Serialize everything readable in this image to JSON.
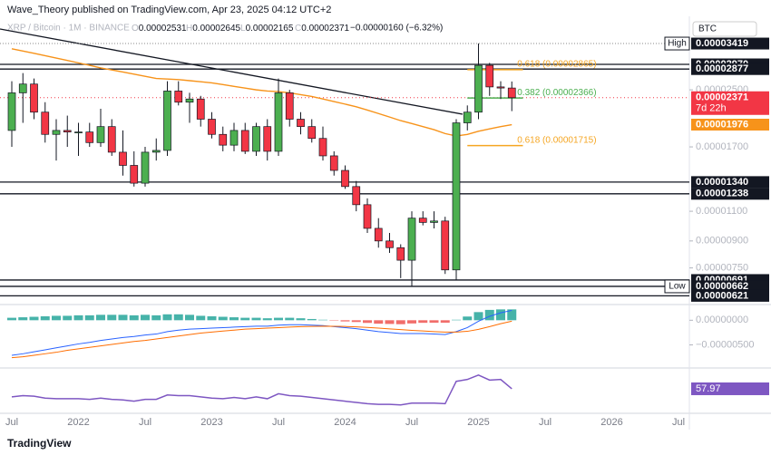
{
  "header": {
    "author_line": "Wave_Theory published on TradingView.com, Apr 23, 2025 04:12 UTC+2",
    "symbol": "XRP / Bitcoin · 1M · BINANCE",
    "ohlc": [
      {
        "key": "O",
        "value": "0.00002531"
      },
      {
        "key": "H",
        "value": "0.00002645"
      },
      {
        "key": "L",
        "value": "0.00002165"
      },
      {
        "key": "C",
        "value": "0.00002371"
      }
    ],
    "change": "−0.00000160 (−6.32%)"
  },
  "currency": "BTC",
  "footer": "TradingView",
  "chart_data": [
    {
      "type": "candlestick",
      "log_scale": true,
      "grid": false,
      "categories": [
        "Jul",
        null,
        null,
        null,
        null,
        null,
        "2022",
        null,
        null,
        null,
        null,
        null,
        "Jul",
        null,
        null,
        null,
        null,
        null,
        "2023",
        null,
        null,
        null,
        null,
        null,
        "Jul",
        null,
        null,
        null,
        null,
        null,
        "2024",
        null,
        null,
        null,
        null,
        null,
        "Jul",
        null,
        null,
        null,
        null,
        null,
        "2025",
        null,
        null,
        null,
        null,
        null,
        "Jul",
        null,
        null,
        null,
        null,
        null,
        "2026",
        null,
        null,
        null,
        null,
        null,
        "Jul"
      ],
      "up_color": "#4caf50",
      "down_color": "#f23645",
      "open": [
        1.9e-05,
        2.45e-05,
        2.6e-05,
        2.15e-05,
        1.85e-05,
        1.9e-05,
        1.88e-05,
        1.88e-05,
        1.75e-05,
        1.95e-05,
        1.64e-05,
        1.5e-05,
        1.33e-05,
        1.64e-05,
        1.66e-05,
        2.48e-05,
        2.3e-05,
        2.35e-05,
        2.05e-05,
        1.85e-05,
        1.72e-05,
        1.9e-05,
        1.65e-05,
        1.95e-05,
        1.65e-05,
        2.45e-05,
        2.05e-05,
        1.95e-05,
        1.8e-05,
        1.6e-05,
        1.45e-05,
        1.3e-05,
        1.15e-05,
        9.8e-06,
        9e-06,
        8.6e-06,
        7.9e-06,
        1.05e-05,
        1.02e-05,
        1.03e-05,
        7.4e-06,
        2e-05,
        2.15e-05,
        2.95e-05,
        2.55e-05,
        2.531e-05,
        null,
        null,
        null,
        null,
        null,
        null,
        null,
        null,
        null,
        null,
        null,
        null,
        null,
        null,
        null
      ],
      "high": [
        2.65e-05,
        2.8e-05,
        2.7e-05,
        2.3e-05,
        2.05e-05,
        2.1e-05,
        2e-05,
        2e-05,
        2.2e-05,
        2.05e-05,
        1.9e-05,
        1.65e-05,
        1.7e-05,
        1.8e-05,
        2.65e-05,
        2.65e-05,
        2.45e-05,
        2.4e-05,
        2.15e-05,
        1.95e-05,
        2e-05,
        2e-05,
        2e-05,
        2.05e-05,
        2.7e-05,
        2.5e-05,
        2.15e-05,
        2.05e-05,
        1.95e-05,
        1.65e-05,
        1.5e-05,
        1.35e-05,
        1.2e-05,
        1.05e-05,
        9.5e-06,
        8.8e-06,
        1.1e-05,
        1.1e-05,
        1.1e-05,
        1.06e-05,
        2.05e-05,
        2.25e-05,
        3.419e-05,
        3e-05,
        2.65e-05,
        2.645e-05,
        null,
        null,
        null,
        null,
        null,
        null,
        null,
        null,
        null,
        null,
        null,
        null,
        null,
        null,
        null
      ],
      "low": [
        1.7e-05,
        2e-05,
        2.05e-05,
        1.75e-05,
        1.55e-05,
        1.7e-05,
        1.6e-05,
        1.7e-05,
        1.7e-05,
        1.6e-05,
        1.4e-05,
        1.3e-05,
        1.3e-05,
        1.55e-05,
        1.6e-05,
        2.25e-05,
        2e-05,
        1.95e-05,
        1.8e-05,
        1.65e-05,
        1.65e-05,
        1.62e-05,
        1.6e-05,
        1.55e-05,
        1.6e-05,
        1.95e-05,
        1.85e-05,
        1.75e-05,
        1.55e-05,
        1.4e-05,
        1.28e-05,
        1.1e-05,
        9.5e-06,
        8.6e-06,
        8.3e-06,
        7e-06,
        6.62e-06,
        1e-05,
        9.8e-06,
        7.2e-06,
        6.9e-06,
        1.9e-05,
        2.05e-05,
        2.4e-05,
        2.35e-05,
        2.165e-05,
        null,
        null,
        null,
        null,
        null,
        null,
        null,
        null,
        null,
        null,
        null,
        null,
        null,
        null,
        null
      ],
      "close": [
        2.45e-05,
        2.6e-05,
        2.15e-05,
        1.85e-05,
        1.9e-05,
        1.88e-05,
        1.88e-05,
        1.75e-05,
        1.95e-05,
        1.64e-05,
        1.5e-05,
        1.33e-05,
        1.64e-05,
        1.66e-05,
        2.48e-05,
        2.3e-05,
        2.35e-05,
        2.05e-05,
        1.85e-05,
        1.72e-05,
        1.9e-05,
        1.65e-05,
        1.95e-05,
        1.65e-05,
        2.45e-05,
        2.05e-05,
        1.95e-05,
        1.8e-05,
        1.6e-05,
        1.45e-05,
        1.3e-05,
        1.15e-05,
        9.8e-06,
        9e-06,
        8.6e-06,
        7.9e-06,
        1.05e-05,
        1.02e-05,
        1.03e-05,
        7.4e-06,
        2e-05,
        2.15e-05,
        2.95e-05,
        2.55e-05,
        2.531e-05,
        2.371e-05,
        null,
        null,
        null,
        null,
        null,
        null,
        null,
        null,
        null,
        null,
        null,
        null,
        null,
        null,
        null
      ],
      "ma": {
        "color": "#f7931a",
        "values": [
          3.3e-05,
          3.25e-05,
          3.2e-05,
          3.15e-05,
          3.1e-05,
          3.05e-05,
          3e-05,
          2.95e-05,
          2.9e-05,
          2.86e-05,
          2.82e-05,
          2.78e-05,
          2.74e-05,
          2.7e-05,
          2.69e-05,
          2.68e-05,
          2.66e-05,
          2.64e-05,
          2.62e-05,
          2.59e-05,
          2.56e-05,
          2.53e-05,
          2.5e-05,
          2.48e-05,
          2.47e-05,
          2.45e-05,
          2.42e-05,
          2.39e-05,
          2.35e-05,
          2.31e-05,
          2.27e-05,
          2.23e-05,
          2.18e-05,
          2.13e-05,
          2.08e-05,
          2.03e-05,
          1.99e-05,
          1.95e-05,
          1.91e-05,
          1.86e-05,
          1.83e-05,
          1.85e-05,
          1.89e-05,
          1.92e-05,
          1.95e-05,
          1.976e-05,
          null,
          null,
          null,
          null,
          null,
          null,
          null,
          null,
          null,
          null,
          null,
          null,
          null,
          null,
          null
        ],
        "box": {
          "value": 1.976e-05,
          "label": "0.00001976"
        }
      },
      "ylim": [
        6e-06,
        4.06e-05
      ],
      "yticks": [
        {
          "value": 2.5e-05,
          "label": "0.00002500"
        },
        {
          "value": 1.7e-05,
          "label": "0.00001700"
        },
        {
          "value": 1.1e-05,
          "label": "0.00001100"
        },
        {
          "value": 9e-06,
          "label": "0.00000900"
        },
        {
          "value": 7.5e-06,
          "label": "0.00000750"
        }
      ],
      "levels": [
        {
          "value": 3.419e-05,
          "label": "0.00003419",
          "tag": "High",
          "line_style": "dotted"
        },
        {
          "value": 2.97e-05,
          "label": "0.00002970",
          "line_style": "solid"
        },
        {
          "value": 2.877e-05,
          "label": "0.00002877",
          "line_style": "solid"
        },
        {
          "value": 1.34e-05,
          "label": "0.00001340",
          "line_style": "solid"
        },
        {
          "value": 1.238e-05,
          "label": "0.00001238",
          "line_style": "solid"
        },
        {
          "value": 6.91e-06,
          "label": "0.00000691",
          "line_style": "solid"
        },
        {
          "value": 6.62e-06,
          "label": "0.00000662",
          "tag": "Low",
          "line_style": "solid"
        },
        {
          "value": 6.21e-06,
          "label": "0.00000621",
          "line_style": "solid"
        }
      ],
      "last_price": {
        "value": 2.371e-05,
        "label": "0.00002371",
        "countdown": "7d 22h",
        "color": "#f23645"
      },
      "fib": [
        {
          "value": 2.865e-05,
          "label": "0.618 (0.00002865)",
          "color": "#f5a623"
        },
        {
          "value": 2.366e-05,
          "label": "0.382 (0.00002366)",
          "color": "#4caf50"
        },
        {
          "value": 1.715e-05,
          "label": "0.618 (0.00001715)",
          "color": "#f5a623"
        }
      ]
    },
    {
      "type": "macd",
      "ylim": [
        -9.5e-06,
        3e-06
      ],
      "yticks": [
        {
          "value": 0,
          "label": "0.00000000"
        },
        {
          "value": -5e-06,
          "label": "−0.00000500"
        }
      ],
      "histogram": {
        "up_color": "#26a69a",
        "down_color": "#ef5350",
        "values": [
          5e-07,
          6e-07,
          7e-07,
          8e-07,
          9e-07,
          9e-07,
          1e-06,
          1e-06,
          1.1e-06,
          1.1e-06,
          1.1e-06,
          1e-06,
          1.1e-06,
          1e-06,
          1.2e-06,
          1.2e-06,
          1.1e-06,
          9e-07,
          8e-07,
          7e-07,
          6e-07,
          5e-07,
          5e-07,
          4e-07,
          5e-07,
          5e-07,
          4e-07,
          2.5e-07,
          1e-07,
          -8e-08,
          -2.4e-07,
          -3.6e-07,
          -5.4e-07,
          -7e-07,
          -7.5e-07,
          -8e-07,
          -6.5e-07,
          -5.2e-07,
          -5e-07,
          -5e-07,
          1e-07,
          7.5e-07,
          1.65e-06,
          2.1e-06,
          2.2e-06,
          2.2e-06,
          null,
          null,
          null,
          null,
          null,
          null,
          null,
          null,
          null,
          null,
          null,
          null,
          null,
          null,
          null
        ]
      },
      "series": [
        {
          "color": "#2962ff",
          "values": [
            -7.1e-06,
            -6.8e-06,
            -6.4e-06,
            -6e-06,
            -5.6e-06,
            -5.2e-06,
            -4.8e-06,
            -4.5e-06,
            -4.1e-06,
            -3.8e-06,
            -3.5e-06,
            -3.3e-06,
            -3e-06,
            -2.8e-06,
            -2.3e-06,
            -2e-06,
            -1.8e-06,
            -1.7e-06,
            -1.6e-06,
            -1.5e-06,
            -1.4e-06,
            -1.3e-06,
            -1.2e-06,
            -1.2e-06,
            -1e-06,
            -9e-07,
            -9e-07,
            -1e-06,
            -1.1e-06,
            -1.3e-06,
            -1.5e-06,
            -1.7e-06,
            -2e-06,
            -2.3e-06,
            -2.5e-06,
            -2.7e-06,
            -2.7e-06,
            -2.7e-06,
            -2.8e-06,
            -2.9e-06,
            -2.3e-06,
            -1.5e-06,
            -2e-07,
            8e-07,
            1.5e-06,
            2e-06,
            null,
            null,
            null,
            null,
            null,
            null,
            null,
            null,
            null,
            null,
            null,
            null,
            null,
            null,
            null
          ]
        },
        {
          "color": "#ff6d00",
          "values": [
            -7.6e-06,
            -7.4e-06,
            -7.1e-06,
            -6.8e-06,
            -6.5e-06,
            -6.1e-06,
            -5.8e-06,
            -5.5e-06,
            -5.2e-06,
            -4.9e-06,
            -4.6e-06,
            -4.3e-06,
            -4.1e-06,
            -3.8e-06,
            -3.5e-06,
            -3.2e-06,
            -2.9e-06,
            -2.6e-06,
            -2.4e-06,
            -2.2e-06,
            -2e-06,
            -1.8e-06,
            -1.7e-06,
            -1.6e-06,
            -1.5e-06,
            -1.4e-06,
            -1.3e-06,
            -1.25e-06,
            -1.2e-06,
            -1.22e-06,
            -1.26e-06,
            -1.34e-06,
            -1.46e-06,
            -1.6e-06,
            -1.75e-06,
            -1.9e-06,
            -2.05e-06,
            -2.18e-06,
            -2.3e-06,
            -2.4e-06,
            -2.4e-06,
            -2.25e-06,
            -1.85e-06,
            -1.3e-06,
            -7e-07,
            -2e-07,
            null,
            null,
            null,
            null,
            null,
            null,
            null,
            null,
            null,
            null,
            null,
            null,
            null,
            null,
            null
          ]
        }
      ]
    },
    {
      "type": "line",
      "color": "#7e57c2",
      "ylim": [
        20,
        90
      ],
      "values": [
        45,
        47,
        46,
        43,
        42,
        42,
        42,
        41,
        43,
        41,
        40,
        38,
        41,
        41,
        48,
        47,
        47,
        45,
        43,
        42,
        44,
        42,
        45,
        42,
        50,
        47,
        46,
        44,
        42,
        40,
        38,
        36,
        34,
        33,
        33,
        32,
        35,
        35,
        35,
        34,
        70,
        73,
        80,
        72,
        73,
        57.97,
        null,
        null,
        null,
        null,
        null,
        null,
        null,
        null,
        null,
        null,
        null,
        null,
        null,
        null,
        null
      ]
    }
  ]
}
